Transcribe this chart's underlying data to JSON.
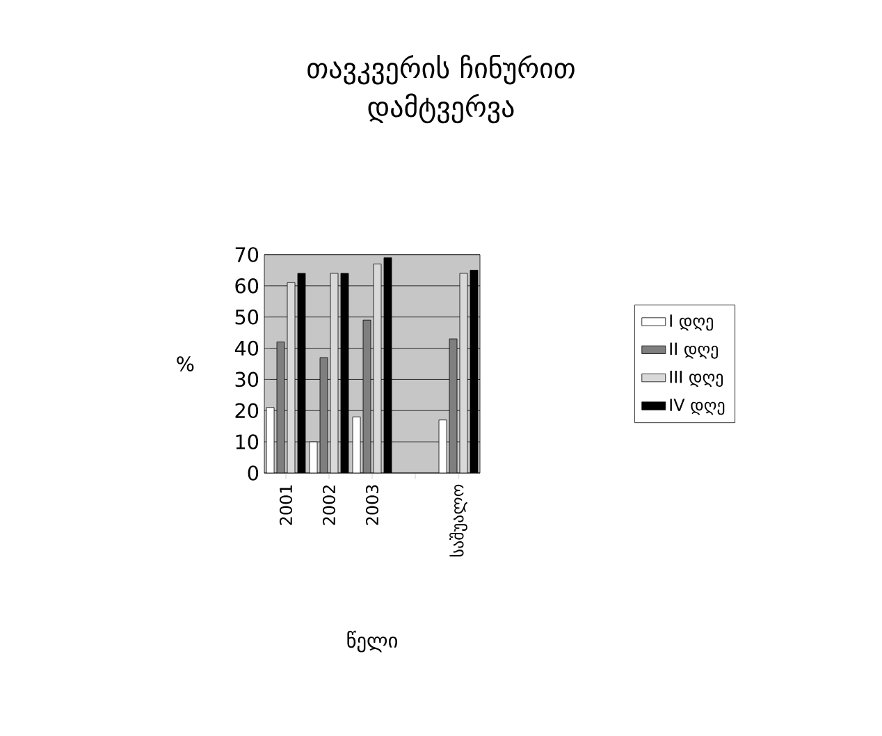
{
  "chart_data": {
    "type": "bar",
    "title": "თავკვერის ჩინურით დამტვერვა",
    "xlabel": "წელი",
    "ylabel": "%",
    "categories": [
      "2001",
      "2002",
      "2003",
      null,
      "საშუალო"
    ],
    "series": [
      {
        "name": "I დღე",
        "color": "#ffffff",
        "values": [
          21,
          10,
          18,
          null,
          17
        ]
      },
      {
        "name": "II დღე",
        "color": "#7f7f7f",
        "values": [
          42,
          37,
          49,
          null,
          43
        ]
      },
      {
        "name": "III დღე",
        "color": "#d9d9d9",
        "values": [
          61,
          64,
          67,
          null,
          64
        ]
      },
      {
        "name": "IV დღე",
        "color": "#000000",
        "values": [
          64,
          64,
          69,
          null,
          65
        ]
      }
    ],
    "ylim": [
      0,
      70
    ],
    "yticks": [
      0,
      10,
      20,
      30,
      40,
      50,
      60,
      70
    ],
    "grid": "y",
    "legend": "right"
  }
}
